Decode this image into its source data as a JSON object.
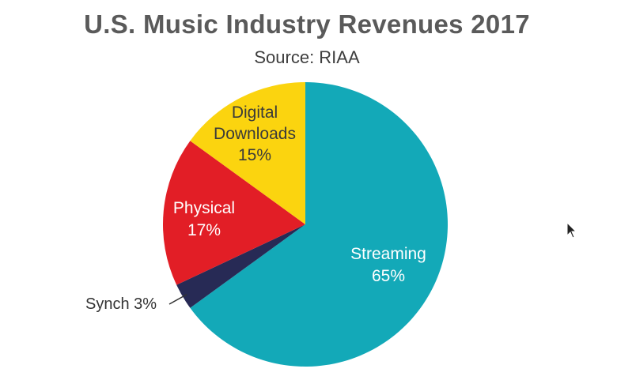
{
  "chart_data": {
    "type": "pie",
    "title": "U.S. Music Industry Revenues 2017",
    "subtitle": "Source: RIAA",
    "slices": [
      {
        "name": "Streaming",
        "value": 65,
        "label": [
          "Streaming",
          "65%"
        ],
        "color": "#13a9b8",
        "label_color": "#ffffff"
      },
      {
        "name": "Synch",
        "value": 3,
        "label": [
          "Synch 3%"
        ],
        "color": "#272a55",
        "label_color": "#333333"
      },
      {
        "name": "Physical",
        "value": 17,
        "label": [
          "Physical",
          "17%"
        ],
        "color": "#e21e26",
        "label_color": "#ffffff"
      },
      {
        "name": "Digital Downloads",
        "value": 15,
        "label": [
          "Digital",
          "Downloads",
          "15%"
        ],
        "color": "#fbd40f",
        "label_color": "#3a3a3a"
      }
    ],
    "start_angle": "top",
    "direction": "clockwise"
  },
  "cursor_icon": "mouse-pointer-icon"
}
